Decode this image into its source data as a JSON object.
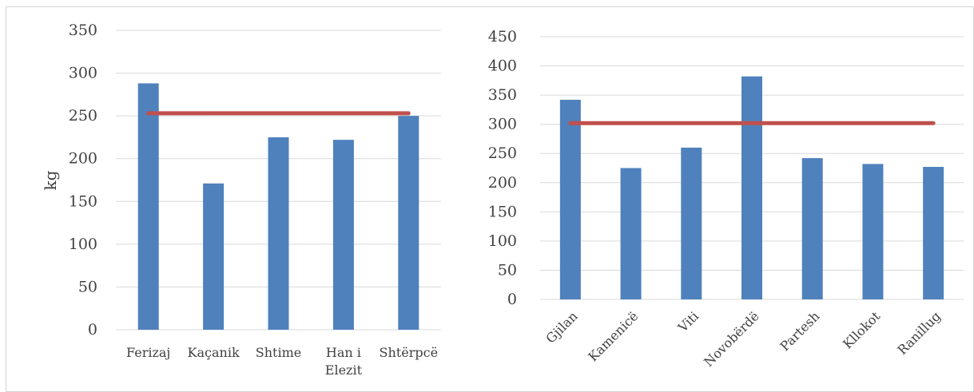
{
  "colors": {
    "bar": "#4f81bd",
    "line": "#c0504d",
    "grid": "#d9d9d9",
    "axis_text": "#404040"
  },
  "chart_data": [
    {
      "type": "bar",
      "title": "",
      "xlabel": "",
      "ylabel": "kg",
      "ylim": [
        0,
        350
      ],
      "yticks": [
        0,
        50,
        100,
        150,
        200,
        250,
        300,
        350
      ],
      "categories": [
        "Ferizaj",
        "Kaçanik",
        "Shtime",
        "Han i Elezit",
        "Shtërpcë"
      ],
      "category_lines": [
        [
          "Ferizaj"
        ],
        [
          "Kaçanik"
        ],
        [
          "Shtime"
        ],
        [
          "Han i",
          "Elezit"
        ],
        [
          "Shtërpcë"
        ]
      ],
      "values": [
        288,
        171,
        225,
        222,
        250
      ],
      "average_line": 253,
      "grid": true,
      "legend": "none"
    },
    {
      "type": "bar",
      "title": "",
      "xlabel": "",
      "ylabel": "",
      "ylim": [
        0,
        450
      ],
      "yticks": [
        0,
        50,
        100,
        150,
        200,
        250,
        300,
        350,
        400,
        450
      ],
      "categories": [
        "Gjilan",
        "Kamenicë",
        "Viti",
        "Novobërdë",
        "Partesh",
        "Kllokot",
        "Ranillug"
      ],
      "values": [
        342,
        225,
        260,
        382,
        242,
        232,
        227
      ],
      "average_line": 302,
      "x_tick_rotation": -45,
      "grid": true,
      "legend": "none"
    }
  ]
}
